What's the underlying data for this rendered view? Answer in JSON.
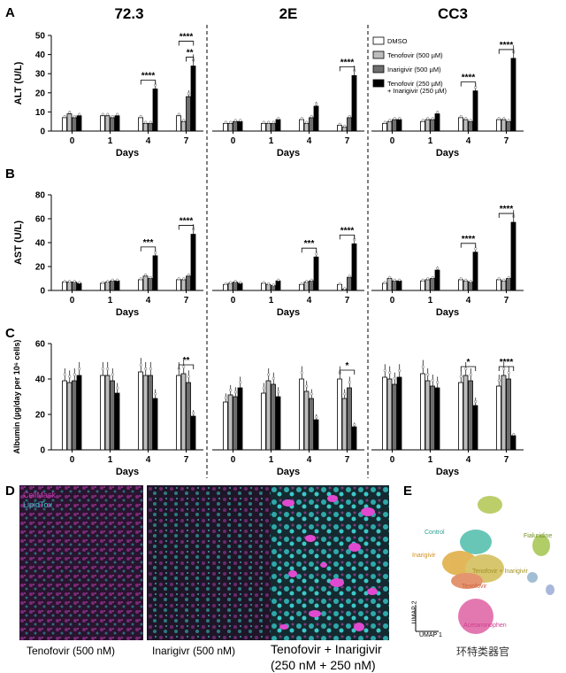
{
  "panel_letters": {
    "a": "A",
    "b": "B",
    "c": "C",
    "d": "D",
    "e": "E"
  },
  "column_titles": [
    "72.3",
    "2E",
    "CC3"
  ],
  "legend": [
    "DMSO",
    "Tenofovir (500 µM)",
    "Inarigivir (500 µM)",
    "Tenofovir (250 µM)",
    "+ Inarigivir (250 µM)"
  ],
  "colors": {
    "dmso": "#ffffff",
    "tenofovir": "#bdbdbd",
    "inarigivir": "#6e6e6e",
    "combo": "#000000",
    "cellmask": "#c03aa8",
    "lipidtox": "#3cc8c8"
  },
  "chart_data": [
    {
      "type": "bar",
      "panel": "A",
      "ylabel": "ALT (U/L)",
      "xlabel": "Days",
      "ylim": [
        0,
        50
      ],
      "yticks": [
        0,
        10,
        20,
        30,
        40,
        50
      ],
      "categories": [
        "0",
        "1",
        "4",
        "7"
      ],
      "groups": [
        {
          "title": "72.3",
          "values": [
            [
              7,
              9,
              7,
              8
            ],
            [
              8,
              8,
              7,
              8
            ],
            [
              7,
              4,
              4,
              22
            ],
            [
              8,
              5,
              18,
              34
            ]
          ],
          "sig": [
            {
              "day": 2,
              "label": "****"
            },
            {
              "day": 3,
              "label": "**"
            },
            {
              "day": 3,
              "label": "****",
              "wide": true
            }
          ]
        },
        {
          "title": "2E",
          "values": [
            [
              4,
              4,
              5,
              5
            ],
            [
              4,
              4,
              4,
              6
            ],
            [
              6,
              4,
              7,
              13
            ],
            [
              3,
              2,
              7,
              29
            ]
          ],
          "sig": [
            {
              "day": 3,
              "label": "****"
            }
          ]
        },
        {
          "title": "CC3",
          "values": [
            [
              4,
              5,
              6,
              6
            ],
            [
              5,
              6,
              6,
              9
            ],
            [
              7,
              6,
              5,
              21
            ],
            [
              6,
              6,
              5,
              38
            ]
          ],
          "sig": [
            {
              "day": 2,
              "label": "****"
            },
            {
              "day": 3,
              "label": "****"
            }
          ]
        }
      ]
    },
    {
      "type": "bar",
      "panel": "B",
      "ylabel": "AST (U/L)",
      "xlabel": "Days",
      "ylim": [
        0,
        80
      ],
      "yticks": [
        0,
        20,
        40,
        60,
        80
      ],
      "categories": [
        "0",
        "1",
        "4",
        "7"
      ],
      "groups": [
        {
          "title": "72.3",
          "values": [
            [
              7,
              7,
              7,
              6
            ],
            [
              6,
              7,
              8,
              8
            ],
            [
              9,
              12,
              10,
              29
            ],
            [
              9,
              9,
              12,
              47
            ]
          ],
          "sig": [
            {
              "day": 2,
              "label": "***"
            },
            {
              "day": 3,
              "label": "****"
            }
          ]
        },
        {
          "title": "2E",
          "values": [
            [
              5,
              6,
              7,
              6
            ],
            [
              6,
              5,
              4,
              8
            ],
            [
              5,
              7,
              8,
              28
            ],
            [
              5,
              1,
              11,
              39
            ]
          ],
          "sig": [
            {
              "day": 2,
              "label": "***"
            },
            {
              "day": 3,
              "label": "****"
            }
          ]
        },
        {
          "title": "CC3",
          "values": [
            [
              6,
              10,
              8,
              8
            ],
            [
              8,
              9,
              10,
              17
            ],
            [
              9,
              8,
              7,
              32
            ],
            [
              9,
              8,
              10,
              57
            ]
          ],
          "sig": [
            {
              "day": 2,
              "label": "****"
            },
            {
              "day": 3,
              "label": "****"
            }
          ]
        }
      ]
    },
    {
      "type": "bar",
      "panel": "C",
      "ylabel": "Albumin (µg/day per 10⁶ cells)",
      "xlabel": "Days",
      "ylim": [
        0,
        60
      ],
      "yticks": [
        0,
        20,
        40,
        60
      ],
      "categories": [
        "0",
        "1",
        "4",
        "7"
      ],
      "groups": [
        {
          "title": "72.3",
          "values": [
            [
              39,
              38,
              39,
              42
            ],
            [
              42,
              42,
              39,
              32
            ],
            [
              44,
              42,
              42,
              29
            ],
            [
              42,
              43,
              38,
              19
            ]
          ],
          "sig": [
            {
              "day": 3,
              "label": "**"
            }
          ]
        },
        {
          "title": "2E",
          "values": [
            [
              27,
              31,
              30,
              35
            ],
            [
              32,
              39,
              37,
              30
            ],
            [
              40,
              33,
              29,
              17
            ],
            [
              40,
              29,
              35,
              13
            ]
          ],
          "sig": [
            {
              "day": 3,
              "label": "*"
            }
          ]
        },
        {
          "title": "CC3",
          "values": [
            [
              41,
              40,
              37,
              41
            ],
            [
              43,
              39,
              36,
              35
            ],
            [
              38,
              42,
              39,
              25
            ],
            [
              36,
              42,
              40,
              8
            ]
          ],
          "sig": [
            {
              "day": 2,
              "label": "*"
            },
            {
              "day": 3,
              "label": "****"
            }
          ]
        }
      ]
    }
  ],
  "panel_d": {
    "legend_cellmask": "CellMask",
    "legend_lipidtox": "LipidTox",
    "captions": [
      "Tenofovir (500 nM)",
      "Inarigivr (500 nM)",
      "Tenofovir + Inarigivir",
      "(250 nM + 250 nM)"
    ]
  },
  "panel_e": {
    "clusters": [
      "Control",
      "Inarigivir",
      "Tenofovir + Inarigivir",
      "Tenofovir",
      "Acetaminophen",
      "Fialuridine"
    ],
    "axis1": "UMAP 1",
    "axis2": "UMAP 2"
  },
  "watermark": "环特类器官"
}
